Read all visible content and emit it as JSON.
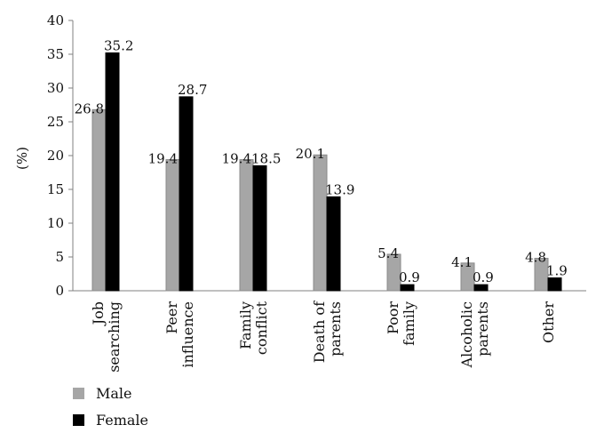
{
  "chart_data": {
    "type": "bar",
    "ylabel": "(%)",
    "ylim": [
      0,
      40
    ],
    "yticks": [
      0,
      5,
      10,
      15,
      20,
      25,
      30,
      35,
      40
    ],
    "grid": false,
    "legend_position": "bottom-left",
    "categories": [
      [
        "Job",
        "searching"
      ],
      [
        "Peer",
        "influence"
      ],
      [
        "Family",
        "conflict"
      ],
      [
        "Death of",
        "parents"
      ],
      [
        "Poor",
        "family"
      ],
      [
        "Alcoholic",
        "parents"
      ],
      [
        "Other"
      ]
    ],
    "series": [
      {
        "name": "Male",
        "color": "#a6a6a6",
        "values": [
          26.8,
          19.4,
          19.4,
          20.1,
          5.4,
          4.1,
          4.8
        ],
        "labels": [
          "26.8",
          "19.4",
          "19.4",
          "20.1",
          "5.4",
          "4.1",
          "4.8"
        ]
      },
      {
        "name": "Female",
        "color": "#000000",
        "values": [
          35.2,
          28.7,
          18.5,
          13.9,
          0.9,
          0.9,
          1.9
        ],
        "labels": [
          "35.2",
          "28.7",
          "18.5",
          "13.9",
          "0.9",
          "0.9",
          "1.9"
        ]
      }
    ]
  }
}
